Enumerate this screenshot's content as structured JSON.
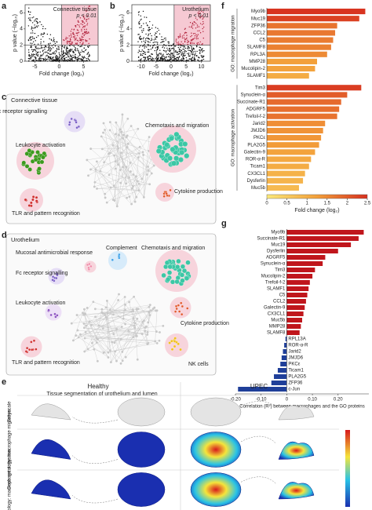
{
  "panel_letters": [
    "a",
    "b",
    "c",
    "d",
    "e",
    "f",
    "g"
  ],
  "chart_data": [
    {
      "type": "volcano",
      "title": "Connective tissue",
      "annotation": "p < 0.01",
      "xlabel": "Fold change (log₂)",
      "ylabel": "p value (−log₁₀)",
      "xlim": [
        -7,
        8
      ],
      "xticks": [
        -5,
        0,
        5
      ],
      "ylim": [
        0,
        7
      ],
      "yticks": [
        0,
        2,
        4,
        6
      ],
      "hlines": [
        2
      ],
      "vlines": [
        0.5
      ],
      "region_color": "#f6c9d3",
      "point_color": "#111111"
    },
    {
      "type": "volcano",
      "title": "Urothelium",
      "annotation": "p < 0.01",
      "xlabel": "Fold change (log₂)",
      "ylabel": "p value (−log₁₀)",
      "xlim": [
        -13,
        13
      ],
      "xticks": [
        -10,
        -5,
        0,
        5,
        10
      ],
      "ylim": [
        0,
        7
      ],
      "yticks": [
        0,
        2,
        4,
        6
      ],
      "hlines": [
        2
      ],
      "vlines": [
        1
      ],
      "region_color": "#f6c9d3",
      "point_color": "#111111"
    },
    {
      "type": "barh-groups",
      "xlabel": "Fold change (log₂)",
      "xlim": [
        0,
        2.5
      ],
      "xticks": [
        0,
        0.5,
        1,
        1.5,
        2,
        2.5
      ],
      "colormap": [
        "#fbe97a",
        "#f3a03a",
        "#d7301f"
      ],
      "series": [
        {
          "name": "GO: macrophage migration",
          "categories": [
            "Myo9b",
            "Muc19",
            "ZFP36",
            "CCL2",
            "C5",
            "SLAMF8",
            "RPL3A",
            "MMP28",
            "Mucolipin-2",
            "SLAMF1"
          ],
          "values": [
            2.45,
            2.3,
            1.75,
            1.7,
            1.65,
            1.6,
            1.5,
            1.25,
            1.2,
            1.05
          ]
        },
        {
          "name": "GO: macrophage activation",
          "categories": [
            "Tim3",
            "Synuclein-α",
            "Succinate-R1",
            "ADGRF5",
            "Trefoil-f-2",
            "Jarid2",
            "JMJD6",
            "PKCε",
            "PLA2G5",
            "Galectin-9",
            "ROR-α-R",
            "Ticam1",
            "CX3CL1",
            "Dysferlin",
            "Muc5b"
          ],
          "values": [
            2.35,
            2.0,
            1.85,
            1.8,
            1.75,
            1.45,
            1.4,
            1.35,
            1.3,
            1.2,
            1.1,
            1.05,
            0.95,
            0.9,
            0.8
          ]
        }
      ]
    },
    {
      "type": "barh-diverging",
      "xlabel": "Correlation (R²) between macrophages and the GO proteins",
      "xlim": [
        -0.2,
        0.32
      ],
      "xticks": [
        {
          "value": -0.2,
          "label": "-0.20"
        },
        {
          "value": -0.1,
          "label": "-0.10"
        },
        0,
        {
          "value": 0.1,
          "label": "0.10"
        },
        {
          "value": 0.2,
          "label": "0.20"
        }
      ],
      "colors": {
        "positive": "#c0161c",
        "negative": "#1f3f99"
      },
      "categories": [
        "Myo9b",
        "Succinate-R1",
        "Muc19",
        "Dysferlin",
        "ADGRF5",
        "Synuclein-α",
        "Tim3",
        "Mucolipin-2",
        "Trefoil-f-2",
        "SLAMF1",
        "C5",
        "CCL2",
        "Galectin-9",
        "CX3CL1",
        "Muc5b",
        "MMP28",
        "SLAMF8",
        "RPL13A",
        "ROR-α-R",
        "Jarid2",
        "JMJD6",
        "PKCε",
        "Ticam1",
        "PLA2G5",
        "ZFP36",
        "c-Jun"
      ],
      "values": [
        0.3,
        0.28,
        0.25,
        0.2,
        0.15,
        0.14,
        0.11,
        0.1,
        0.09,
        0.085,
        0.08,
        0.075,
        0.07,
        0.065,
        0.06,
        0.055,
        0.05,
        -0.005,
        -0.01,
        -0.015,
        -0.02,
        -0.025,
        -0.035,
        -0.05,
        -0.06,
        -0.19
      ]
    }
  ],
  "network_c": {
    "title": "Connective tissue",
    "clusters": [
      "Fc receptor signalling",
      "Leukocyte activation",
      "TLR and pattern recognition",
      "Chemotaxis and migration",
      "Cytokine production"
    ]
  },
  "network_d": {
    "title": "Urothelium",
    "clusters": [
      "Mucosal antimicrobial response",
      "Fc receptor signalling",
      "Leukocyte activation",
      "TLR and pattern recognition",
      "Complement",
      "Chemotaxis and migration",
      "Cytokine production",
      "NK cells"
    ]
  },
  "panel_e": {
    "columns": [
      "Healthy",
      "UPEC"
    ],
    "subtitle": "Tissue segmentation of urothelium and lumen",
    "rows": [
      "Greyscale",
      "Gene ontology: macrophage migration",
      "Gene ontology: macrophage activation"
    ]
  }
}
